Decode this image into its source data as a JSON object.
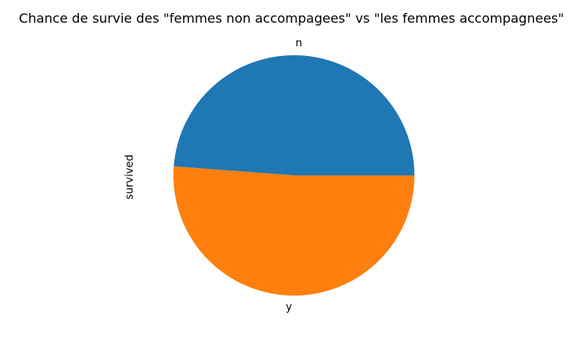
{
  "chart_data": {
    "type": "pie",
    "title": "Chance de survie des \"femmes non accompagees\" vs \"les femmes accompagnees\"",
    "ylabel": "survived",
    "labels": [
      "n",
      "y"
    ],
    "values": [
      0.488,
      0.512
    ],
    "colors": [
      "#1f77b4",
      "#ff7f0e"
    ],
    "start_angle": 0,
    "direction": "counterclockwise",
    "legend": "none"
  }
}
